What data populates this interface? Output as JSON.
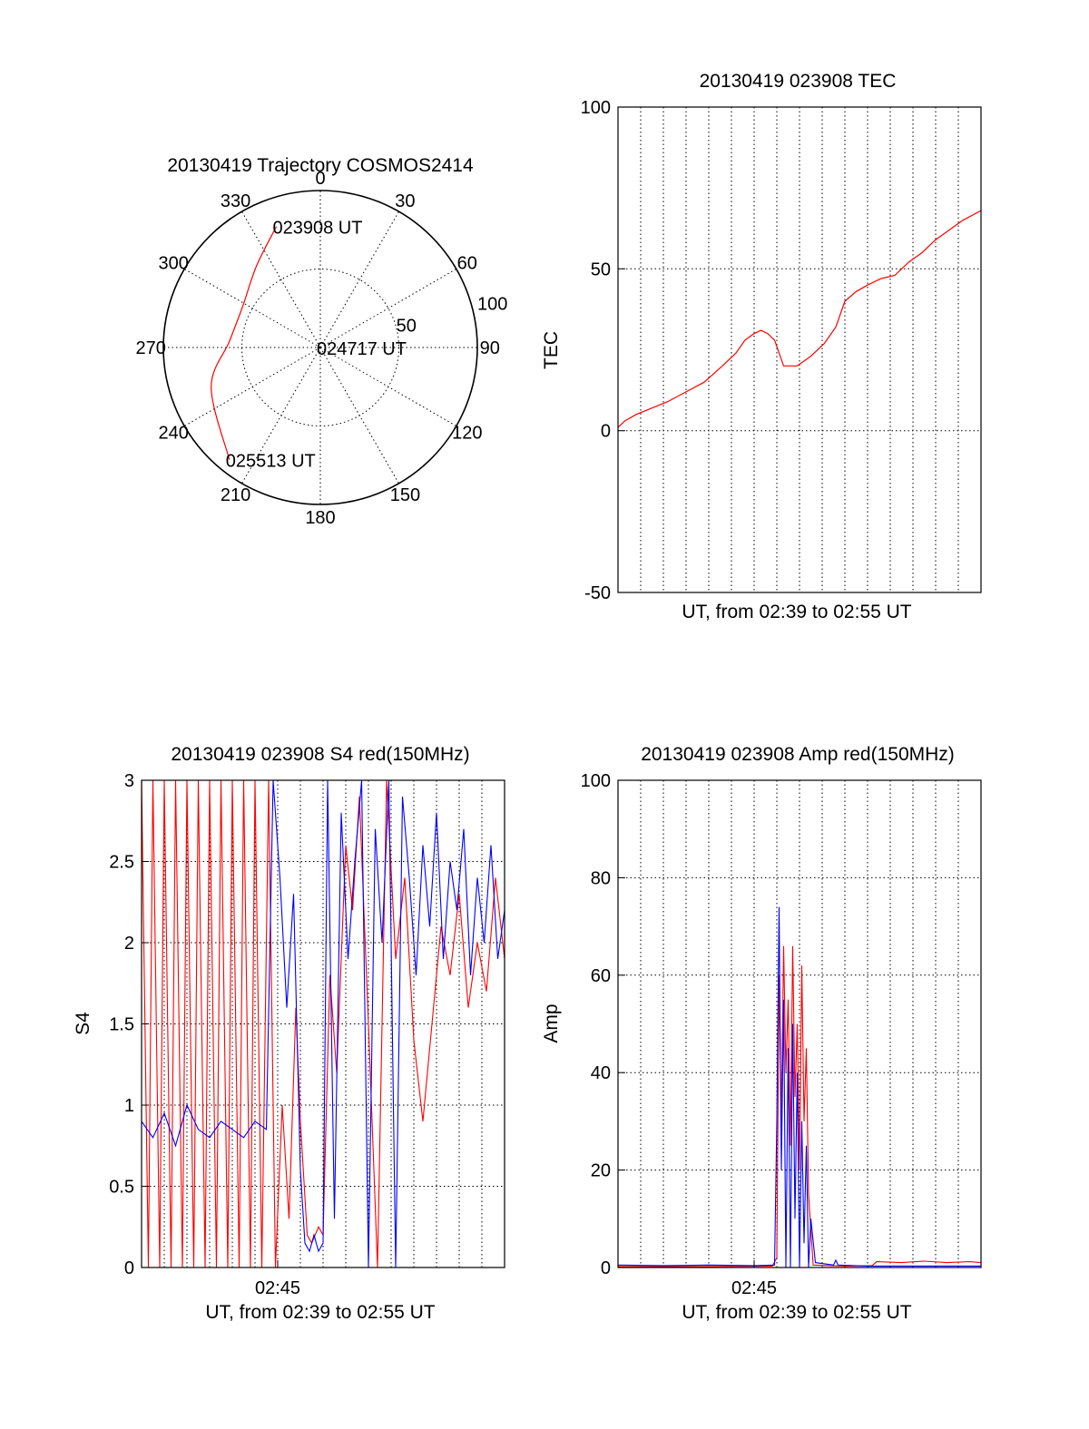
{
  "figure": {
    "background": "#ffffff",
    "line_color": "#000000"
  },
  "chart_data": [
    {
      "type": "polar",
      "title": "20130419 Trajectory COSMOS2414",
      "azimuth_ticks": [
        "0",
        "30",
        "60",
        "90",
        "120",
        "150",
        "180",
        "210",
        "240",
        "270",
        "300",
        "330"
      ],
      "radial_ticks": [
        "50",
        "100"
      ],
      "radial_range": [
        0,
        100
      ],
      "radial_ring_values": [
        50
      ],
      "radial_tick_values": [
        50,
        100
      ],
      "grid": true,
      "trajectory": {
        "color": "#ff0000",
        "points": [
          {
            "az": 340,
            "r": 82
          },
          {
            "az": 322,
            "r": 66
          },
          {
            "az": 298,
            "r": 56
          },
          {
            "az": 274,
            "r": 58
          },
          {
            "az": 250,
            "r": 74
          },
          {
            "az": 219,
            "r": 92
          }
        ]
      },
      "annotations": [
        {
          "text": "023908 UT",
          "az": 340,
          "r": 82
        },
        {
          "text": "024717 UT",
          "az": 0,
          "r": 0
        },
        {
          "text": "025513 UT",
          "az": 219,
          "r": 92
        }
      ]
    },
    {
      "type": "line",
      "title": "20130419 023908 TEC",
      "xlabel": "UT, from 02:39 to 02:55 UT",
      "ylabel": "TEC",
      "xlim": [
        0,
        16
      ],
      "ylim": [
        -50,
        100
      ],
      "y_ticks": [
        "-50",
        "0",
        "50",
        "100"
      ],
      "y_tick_values": [
        -50,
        0,
        50,
        100
      ],
      "x_tick_labels": [],
      "grid": true,
      "series": [
        {
          "color": "#ff0000",
          "x": [
            0,
            0.3,
            0.8,
            1.5,
            2.2,
            3.0,
            3.8,
            4.6,
            5.2,
            5.6,
            6.0,
            6.3,
            6.6,
            6.9,
            7.3,
            7.9,
            8.5,
            9.1,
            9.6,
            10.0,
            10.5,
            11.0,
            11.6,
            12.2,
            12.8,
            13.4,
            14.0,
            14.6,
            15.2,
            16.0
          ],
          "y": [
            1,
            3,
            5,
            7,
            9,
            12,
            15,
            20,
            24,
            28,
            30,
            31,
            30,
            28,
            20,
            20,
            23,
            27,
            32,
            40,
            43,
            45,
            47,
            48,
            52,
            55,
            59,
            62,
            65,
            68
          ]
        }
      ]
    },
    {
      "type": "line",
      "title": "20130419 023908 S4 red(150MHz)",
      "xlabel": "UT, from 02:39 to 02:55 UT",
      "ylabel": "S4",
      "xlim": [
        0,
        16
      ],
      "ylim": [
        0,
        3
      ],
      "y_ticks": [
        "0",
        "0.5",
        "1",
        "1.5",
        "2",
        "2.5",
        "3"
      ],
      "y_tick_values": [
        0,
        0.5,
        1,
        1.5,
        2,
        2.5,
        3
      ],
      "x_ticks": [
        "02:45"
      ],
      "x_tick_values": [
        6
      ],
      "grid": true,
      "series": [
        {
          "color": "#ff0000",
          "x": [
            0,
            0.3,
            0.5,
            0.8,
            1.0,
            1.3,
            1.5,
            1.8,
            2.0,
            2.3,
            2.5,
            2.8,
            3.0,
            3.3,
            3.5,
            3.8,
            4.0,
            4.3,
            4.5,
            4.8,
            5.0,
            5.3,
            5.6,
            5.9,
            6.2,
            6.5,
            6.8,
            7.0,
            7.3,
            7.5,
            7.8,
            8.0,
            8.3,
            8.6,
            9.0,
            9.3,
            9.6,
            10.0,
            10.4,
            10.8,
            11.2,
            11.6,
            12.0,
            12.4,
            12.8,
            13.2,
            13.6,
            14.0,
            14.4,
            14.8,
            15.2,
            15.6,
            16.0
          ],
          "y": [
            3,
            0,
            3,
            0,
            3,
            0,
            3,
            0,
            3,
            0,
            3,
            0,
            3,
            0,
            3,
            0,
            3,
            0,
            3,
            0,
            3,
            0,
            3,
            0,
            1.0,
            0.3,
            1.6,
            0.9,
            0.2,
            0.15,
            0.25,
            0.2,
            1.8,
            1.2,
            2.6,
            2.2,
            2.9,
            1.5,
            0.0,
            3,
            1.9,
            2.4,
            1.4,
            0.9,
            1.5,
            2.1,
            1.8,
            2.3,
            1.6,
            2.0,
            1.7,
            2.4,
            1.9
          ]
        },
        {
          "color": "#0000ff",
          "x": [
            0,
            0.5,
            1.0,
            1.5,
            2.0,
            2.5,
            3.0,
            3.5,
            4.0,
            4.5,
            5.0,
            5.5,
            5.8,
            6.1,
            6.4,
            6.7,
            7.0,
            7.2,
            7.4,
            7.6,
            7.8,
            8.0,
            8.2,
            8.5,
            8.8,
            9.1,
            9.4,
            9.7,
            10.0,
            10.3,
            10.6,
            10.9,
            11.2,
            11.5,
            11.8,
            12.1,
            12.4,
            12.7,
            13.0,
            13.3,
            13.6,
            13.9,
            14.2,
            14.5,
            14.8,
            15.1,
            15.4,
            15.7,
            16.0
          ],
          "y": [
            0.9,
            0.8,
            0.95,
            0.75,
            1.0,
            0.85,
            0.8,
            0.9,
            0.85,
            0.8,
            0.9,
            0.85,
            3,
            2.4,
            1.6,
            2.3,
            0.6,
            0.15,
            0.1,
            0.2,
            0.1,
            0.15,
            3,
            0.3,
            2.8,
            1.9,
            2.5,
            3,
            0.0,
            2.7,
            2.0,
            3,
            0.0,
            2.9,
            2.4,
            1.8,
            2.6,
            2.1,
            2.8,
            1.9,
            2.5,
            2.2,
            2.7,
            1.8,
            2.4,
            2.0,
            2.6,
            1.9,
            2.2
          ]
        }
      ]
    },
    {
      "type": "line",
      "title": "20130419 023908 Amp red(150MHz)",
      "xlabel": "UT, from 02:39 to 02:55 UT",
      "ylabel": "Amp",
      "xlim": [
        0,
        16
      ],
      "ylim": [
        0,
        100
      ],
      "y_ticks": [
        "0",
        "20",
        "40",
        "60",
        "80",
        "100"
      ],
      "y_tick_values": [
        0,
        20,
        40,
        60,
        80,
        100
      ],
      "x_ticks": [
        "02:45"
      ],
      "x_tick_values": [
        6
      ],
      "grid": true,
      "series": [
        {
          "color": "#ff0000",
          "x": [
            0,
            2,
            4,
            6.8,
            7.0,
            7.1,
            7.2,
            7.3,
            7.4,
            7.5,
            7.6,
            7.7,
            7.8,
            7.9,
            8.0,
            8.1,
            8.2,
            8.3,
            8.4,
            8.6,
            10,
            11.2,
            11.4,
            12.5,
            13.5,
            14.5,
            15.5,
            16
          ],
          "y": [
            0.2,
            0.2,
            0.2,
            0.3,
            2,
            60,
            30,
            66,
            40,
            55,
            25,
            66,
            35,
            50,
            20,
            62,
            30,
            45,
            15,
            0.5,
            0.3,
            0.4,
            1.2,
            1.0,
            1.3,
            1.0,
            1.2,
            1.0
          ]
        },
        {
          "color": "#0000ff",
          "x": [
            0,
            2,
            4,
            6,
            6.9,
            7.0,
            7.1,
            7.2,
            7.3,
            7.4,
            7.5,
            7.6,
            7.7,
            7.8,
            7.9,
            8.0,
            8.1,
            8.2,
            8.3,
            8.4,
            8.5,
            8.7,
            9.5,
            9.6,
            9.7,
            11,
            13,
            16
          ],
          "y": [
            0.5,
            0.4,
            0.5,
            0.4,
            0.5,
            30,
            74,
            20,
            55,
            0,
            45,
            0,
            50,
            10,
            40,
            0,
            30,
            5,
            25,
            0,
            10,
            1,
            0.5,
            1.5,
            0.5,
            0.3,
            0.3,
            0.3
          ]
        }
      ]
    }
  ]
}
